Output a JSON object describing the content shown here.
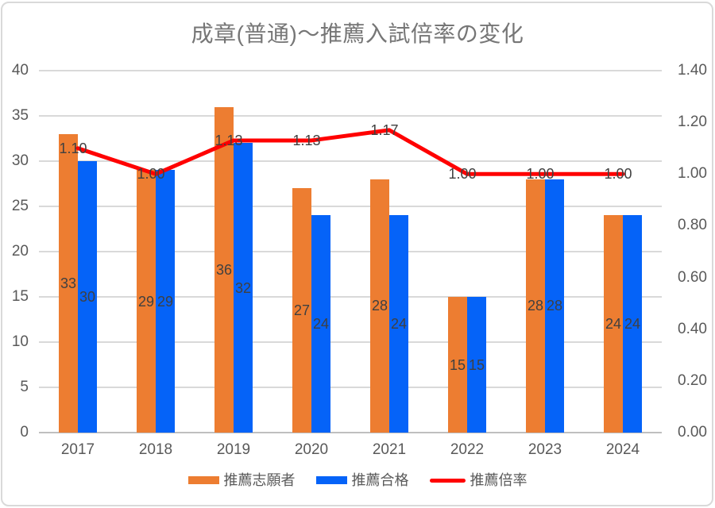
{
  "chart_data": {
    "type": "combo",
    "title": "成章(普通)〜推薦入試倍率の変化",
    "categories": [
      "2017",
      "2018",
      "2019",
      "2020",
      "2021",
      "2022",
      "2023",
      "2024"
    ],
    "series": [
      {
        "name": "推薦志願者",
        "type": "bar",
        "axis": "left",
        "color": "#ED7D31",
        "values": [
          33,
          29,
          36,
          27,
          28,
          15,
          28,
          24
        ],
        "value_labels": [
          "33",
          "29",
          "36",
          "27",
          "28",
          "15",
          "28",
          "24"
        ]
      },
      {
        "name": "推薦合格",
        "type": "bar",
        "axis": "left",
        "color": "#0563F8",
        "values": [
          30,
          29,
          32,
          24,
          24,
          15,
          28,
          24
        ],
        "value_labels": [
          "30",
          "29",
          "32",
          "24",
          "24",
          "15",
          "28",
          "24"
        ]
      },
      {
        "name": "推薦倍率",
        "type": "line",
        "axis": "right",
        "color": "#FF0000",
        "values": [
          1.1,
          1.0,
          1.13,
          1.13,
          1.17,
          1.0,
          1.0,
          1.0
        ],
        "value_labels": [
          "1.10",
          "1.00",
          "1.13",
          "1.13",
          "1.17",
          "1.00",
          "1.00",
          "1.00"
        ]
      }
    ],
    "left_axis": {
      "min": 0,
      "max": 40,
      "step": 5,
      "tick_labels": [
        "0",
        "5",
        "10",
        "15",
        "20",
        "25",
        "30",
        "35",
        "40"
      ]
    },
    "right_axis": {
      "min": 0.0,
      "max": 1.4,
      "step": 0.2,
      "tick_labels": [
        "0.00",
        "0.20",
        "0.40",
        "0.60",
        "0.80",
        "1.00",
        "1.20",
        "1.40"
      ]
    },
    "legend": {
      "position": "bottom",
      "entries": [
        "推薦志願者",
        "推薦合格",
        "推薦倍率"
      ]
    },
    "grid": true,
    "colors": {
      "gridline": "#D9D9D9",
      "axis_line": "#BFBFBF",
      "title_text": "#767676",
      "axis_text": "#595959",
      "data_label_text": "#404040"
    }
  }
}
